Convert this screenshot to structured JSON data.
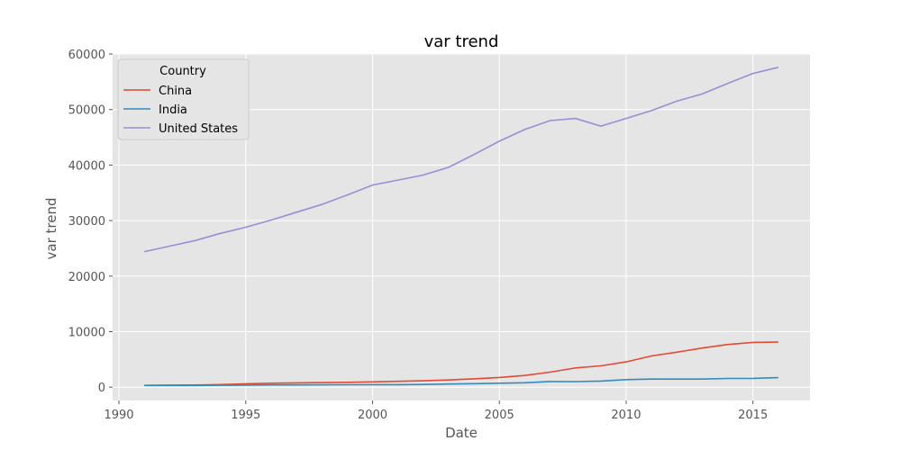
{
  "chart_data": {
    "type": "line",
    "title": "var trend",
    "xlabel": "Date",
    "ylabel": "var trend",
    "x": [
      1991,
      1992,
      1993,
      1994,
      1995,
      1996,
      1997,
      1998,
      1999,
      2000,
      2001,
      2002,
      2003,
      2004,
      2005,
      2006,
      2007,
      2008,
      2009,
      2010,
      2011,
      2012,
      2013,
      2014,
      2015,
      2016
    ],
    "xlim": [
      1989.75,
      2017.25
    ],
    "ylim": [
      -2400,
      60000
    ],
    "xticks": [
      1990,
      1995,
      2000,
      2005,
      2010,
      2015
    ],
    "yticks": [
      0,
      10000,
      20000,
      30000,
      40000,
      50000,
      60000
    ],
    "grid": true,
    "legend": {
      "title": "Country",
      "placement": "top-left"
    },
    "series": [
      {
        "name": "China",
        "color": "#E24A33",
        "values": [
          330,
          370,
          380,
          470,
          610,
          710,
          780,
          830,
          870,
          960,
          1050,
          1150,
          1290,
          1510,
          1750,
          2100,
          2700,
          3470,
          3840,
          4550,
          5620,
          6300,
          7050,
          7680,
          8070,
          8120
        ]
      },
      {
        "name": "India",
        "color": "#348ABD",
        "values": [
          300,
          310,
          300,
          340,
          370,
          400,
          410,
          420,
          440,
          450,
          460,
          480,
          560,
          630,
          710,
          800,
          1020,
          1000,
          1100,
          1360,
          1460,
          1450,
          1450,
          1570,
          1590,
          1720
        ]
      },
      {
        "name": "United States",
        "color": "#988ED5",
        "values": [
          24400,
          25400,
          26400,
          27700,
          28800,
          30100,
          31500,
          32900,
          34600,
          36400,
          37300,
          38200,
          39600,
          41900,
          44300,
          46400,
          48000,
          48400,
          47000,
          48400,
          49800,
          51500,
          52800,
          54700,
          56500,
          57600
        ]
      }
    ]
  }
}
